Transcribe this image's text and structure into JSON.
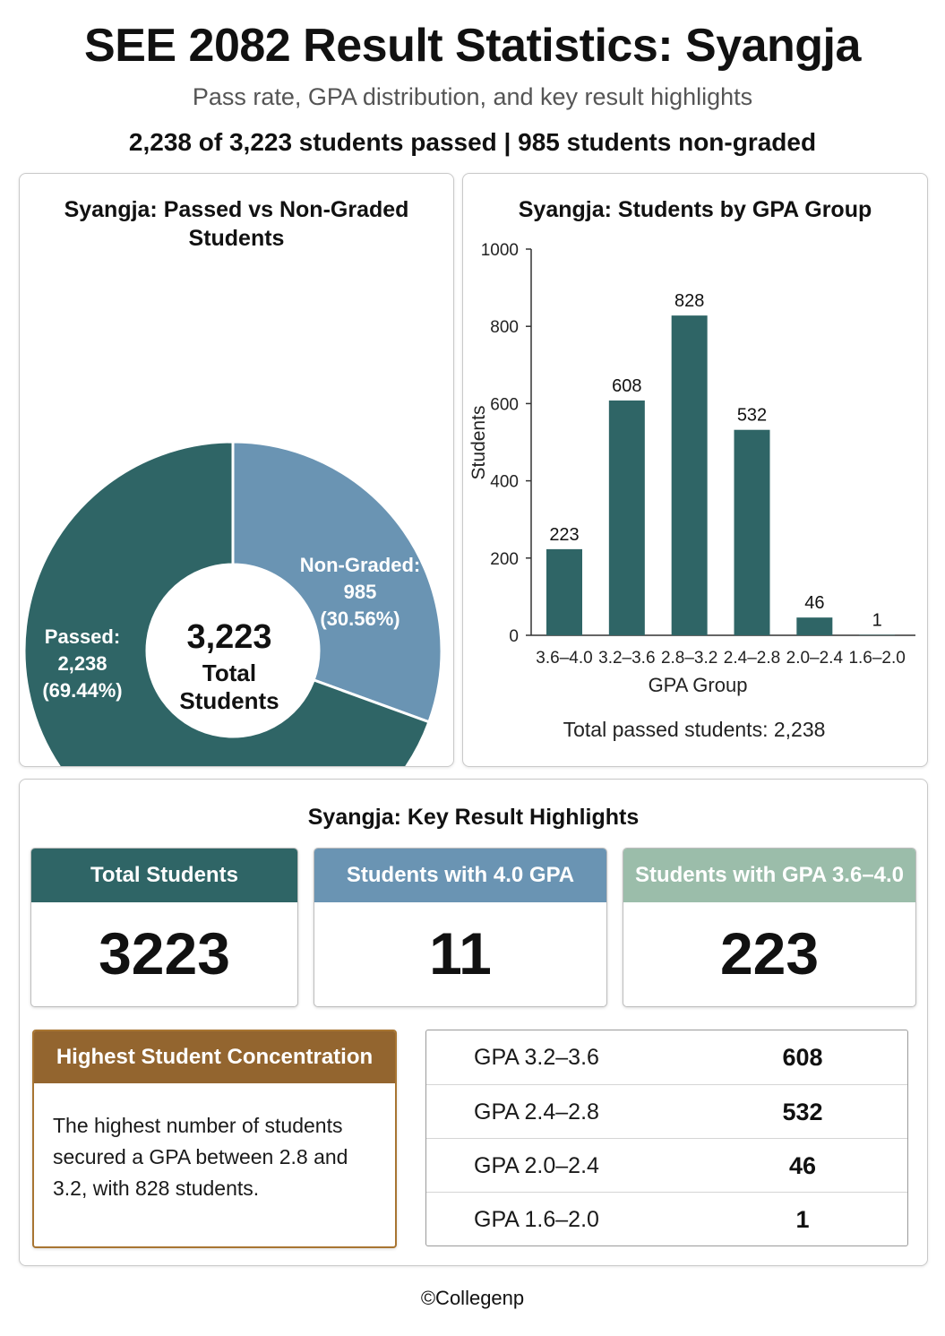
{
  "header": {
    "title": "SEE 2082 Result Statistics: Syangja",
    "subtitle": "Pass rate, GPA distribution, and key result highlights",
    "summary": "2,238 of 3,223 students passed | 985 students non-graded"
  },
  "chart_data": [
    {
      "type": "pie",
      "title": "Syangja: Passed vs Non-Graded Students",
      "donut": true,
      "center_label": {
        "value": "3,223",
        "line1": "Total",
        "line2": "Students"
      },
      "slices": [
        {
          "label": "Non-Graded:",
          "value": 985,
          "value_text": "985",
          "percent_text": "(30.56%)",
          "color": "#6a94b3"
        },
        {
          "label": "Passed:",
          "value": 2238,
          "value_text": "2,238",
          "percent_text": "(69.44%)",
          "color": "#2f6566"
        }
      ]
    },
    {
      "type": "bar",
      "title": "Syangja: Students by GPA Group",
      "categories": [
        "3.6–4.0",
        "3.2–3.6",
        "2.8–3.2",
        "2.4–2.8",
        "2.0–2.4",
        "1.6–2.0"
      ],
      "values": [
        223,
        608,
        828,
        532,
        46,
        1
      ],
      "xlabel": "GPA Group",
      "ylabel": "Students",
      "ylim": [
        0,
        1000
      ],
      "yticks": [
        0,
        200,
        400,
        600,
        800,
        1000
      ],
      "grid": false,
      "color": "#2f6566",
      "note": "Total passed students: 2,238"
    }
  ],
  "highlights": {
    "title": "Syangja: Key Result Highlights",
    "cards": [
      {
        "label": "Total Students",
        "value": "3223",
        "color": "#2f6566"
      },
      {
        "label": "Students with 4.0 GPA",
        "value": "11",
        "color": "#6a94b3"
      },
      {
        "label": "Students with GPA 3.6–4.0",
        "value": "223",
        "color": "#9bbdaa"
      }
    ],
    "concentration": {
      "title": "Highest Student Concentration",
      "text": "The highest number of students secured a GPA between 2.8 and 3.2, with 828 students.",
      "color": "#93652f"
    },
    "table": [
      {
        "label": "GPA 3.2–3.6",
        "value": "608"
      },
      {
        "label": "GPA 2.4–2.8",
        "value": "532"
      },
      {
        "label": "GPA 2.0–2.4",
        "value": "46"
      },
      {
        "label": "GPA 1.6–2.0",
        "value": "1"
      }
    ]
  },
  "footer": "©Collegenp"
}
